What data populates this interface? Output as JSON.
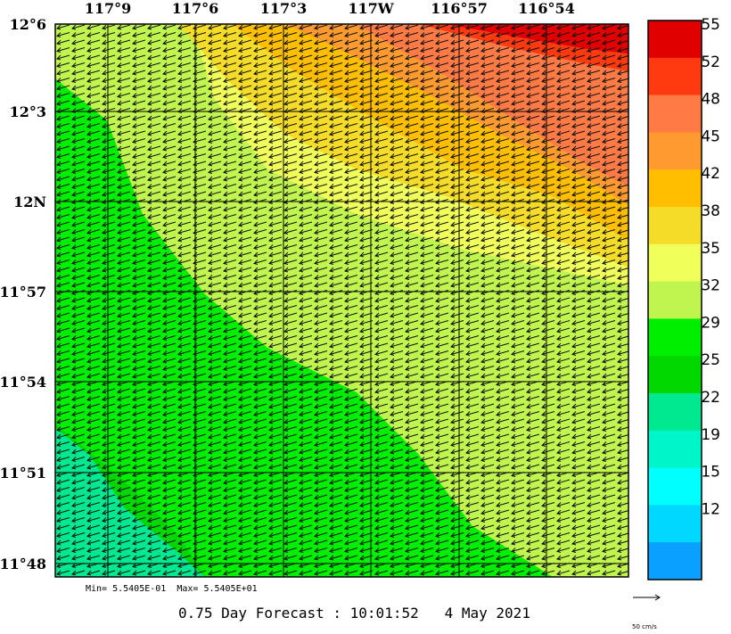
{
  "map": {
    "lon_labels": [
      "117°9",
      "117°6",
      "117°3",
      "117W",
      "116°57",
      "116°54"
    ],
    "lat_labels": [
      "12°6",
      "12°3",
      "12N",
      "11°57",
      "11°54",
      "11°51",
      "11°48"
    ]
  },
  "colorbar": {
    "labels": [
      "55",
      "52",
      "48",
      "45",
      "42",
      "38",
      "35",
      "32",
      "29",
      "25",
      "22",
      "19",
      "15",
      "12"
    ],
    "colors": [
      "#e00000",
      "#ff3a10",
      "#ff7a45",
      "#ff9a30",
      "#ffbf00",
      "#f5dc28",
      "#f0ff5a",
      "#c0f550",
      "#00ee00",
      "#00d800",
      "#00e890",
      "#00f5c8",
      "#00ffff",
      "#00d8ff",
      "#0aa0ff"
    ]
  },
  "footer": {
    "minmax": "Min= 5.5405E-01  Max= 5.5405E+01",
    "forecast": "0.75 Day Forecast : 10:01:52   4 May 2021",
    "scale_label": "50 cm/s"
  }
}
